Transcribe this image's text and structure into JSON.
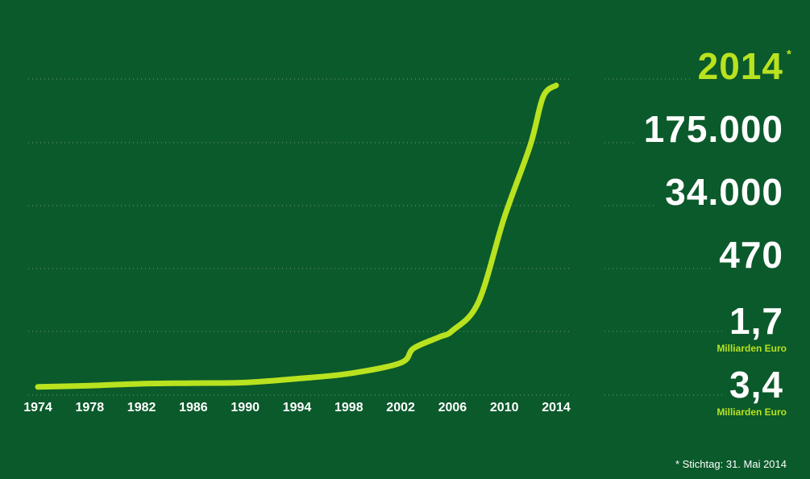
{
  "chart_data": {
    "type": "line",
    "x": [
      1974,
      1978,
      1982,
      1986,
      1990,
      1994,
      1998,
      2002,
      2003,
      2005,
      2006,
      2008,
      2010,
      2012,
      2013,
      2014
    ],
    "values": [
      0.13,
      0.15,
      0.18,
      0.19,
      0.2,
      0.26,
      0.34,
      0.51,
      0.74,
      0.92,
      1.02,
      1.47,
      2.81,
      3.95,
      4.72,
      4.9
    ],
    "color": "#b9e21f",
    "xlim": [
      1974,
      2014
    ],
    "xticks": [
      1974,
      1978,
      1982,
      1986,
      1990,
      1994,
      1998,
      2002,
      2006,
      2010,
      2014
    ],
    "ylim": [
      0,
      5
    ]
  },
  "panel": {
    "year": "2014",
    "asterisk": "*",
    "stats": [
      {
        "value": "175.000"
      },
      {
        "value": "34.000"
      },
      {
        "value": "470"
      },
      {
        "value": "1,7",
        "unit": "Milliarden Euro"
      },
      {
        "value": "3,4",
        "unit": "Milliarden Euro"
      }
    ],
    "footnote": "* Stichtag: 31. Mai 2014"
  }
}
